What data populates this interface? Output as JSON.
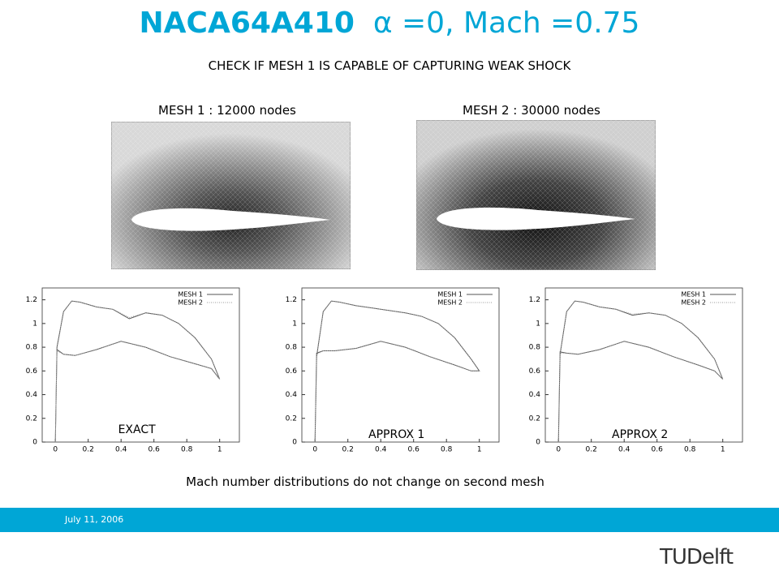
{
  "title": {
    "name": "NACA64A410",
    "condition": "α =0, Mach =0.75"
  },
  "subtitle": "CHECK IF MESH 1 IS CAPABLE OF CAPTURING WEAK SHOCK",
  "meshes": [
    {
      "label": "MESH 1 :  12000 nodes"
    },
    {
      "label": "MESH 2 :  30000 nodes"
    }
  ],
  "caption": "Mach number distributions do not change on second mesh",
  "date": "July 11, 2006",
  "logo": "TUDelft",
  "chart_data": [
    {
      "type": "line",
      "annotation": "EXACT",
      "x": [
        0,
        0.01,
        0.05,
        0.1,
        0.15,
        0.25,
        0.35,
        0.45,
        0.55,
        0.65,
        0.75,
        0.85,
        0.95,
        1,
        0.95,
        0.85,
        0.7,
        0.55,
        0.4,
        0.25,
        0.12,
        0.05,
        0.01,
        0
      ],
      "series": [
        {
          "name": "MESH 1",
          "color": "#555555",
          "style": "solid",
          "values": [
            0,
            0.8,
            1.1,
            1.19,
            1.18,
            1.14,
            1.12,
            1.04,
            1.09,
            1.07,
            1.0,
            0.88,
            0.7,
            0.53,
            0.62,
            0.66,
            0.72,
            0.8,
            0.85,
            0.78,
            0.73,
            0.74,
            0.78,
            0
          ]
        },
        {
          "name": "MESH 2",
          "color": "#999999",
          "style": "dotted",
          "values": [
            0,
            0.79,
            1.1,
            1.19,
            1.18,
            1.14,
            1.12,
            1.05,
            1.09,
            1.07,
            1.0,
            0.88,
            0.7,
            0.53,
            0.62,
            0.66,
            0.72,
            0.8,
            0.85,
            0.78,
            0.73,
            0.74,
            0.77,
            0
          ]
        }
      ],
      "xlim": [
        -0.08,
        1.12
      ],
      "ylim": [
        0,
        1.3
      ],
      "xticks": [
        0,
        0.2,
        0.4,
        0.6,
        0.8,
        1
      ],
      "yticks": [
        0,
        0.2,
        0.4,
        0.6,
        0.8,
        1,
        1.2
      ]
    },
    {
      "type": "line",
      "annotation": "APPROX 1",
      "x": [
        0,
        0.01,
        0.05,
        0.1,
        0.15,
        0.25,
        0.35,
        0.45,
        0.55,
        0.65,
        0.75,
        0.85,
        0.95,
        1,
        0.95,
        0.85,
        0.7,
        0.55,
        0.4,
        0.25,
        0.12,
        0.05,
        0.01,
        0
      ],
      "series": [
        {
          "name": "MESH 1",
          "color": "#555555",
          "style": "solid",
          "values": [
            0,
            0.72,
            1.1,
            1.19,
            1.18,
            1.15,
            1.13,
            1.11,
            1.09,
            1.06,
            1.0,
            0.88,
            0.7,
            0.6,
            0.6,
            0.65,
            0.72,
            0.8,
            0.85,
            0.79,
            0.77,
            0.77,
            0.75,
            0
          ]
        },
        {
          "name": "MESH 2",
          "color": "#999999",
          "style": "dotted",
          "values": [
            0,
            0.73,
            1.1,
            1.19,
            1.18,
            1.15,
            1.13,
            1.11,
            1.09,
            1.06,
            1.0,
            0.88,
            0.7,
            0.6,
            0.6,
            0.65,
            0.72,
            0.8,
            0.85,
            0.79,
            0.77,
            0.77,
            0.74,
            0
          ]
        }
      ],
      "xlim": [
        -0.08,
        1.12
      ],
      "ylim": [
        0,
        1.3
      ],
      "xticks": [
        0,
        0.2,
        0.4,
        0.6,
        0.8,
        1
      ],
      "yticks": [
        0,
        0.2,
        0.4,
        0.6,
        0.8,
        1,
        1.2
      ]
    },
    {
      "type": "line",
      "annotation": "APPROX 2",
      "x": [
        0,
        0.01,
        0.05,
        0.1,
        0.15,
        0.25,
        0.35,
        0.45,
        0.55,
        0.65,
        0.75,
        0.85,
        0.95,
        1,
        0.95,
        0.85,
        0.7,
        0.55,
        0.4,
        0.25,
        0.12,
        0.05,
        0.01,
        0
      ],
      "series": [
        {
          "name": "MESH 1",
          "color": "#555555",
          "style": "solid",
          "values": [
            0,
            0.74,
            1.1,
            1.19,
            1.18,
            1.14,
            1.12,
            1.07,
            1.09,
            1.07,
            1.0,
            0.88,
            0.7,
            0.53,
            0.6,
            0.65,
            0.72,
            0.8,
            0.85,
            0.78,
            0.74,
            0.75,
            0.76,
            0
          ]
        },
        {
          "name": "MESH 2",
          "color": "#999999",
          "style": "dotted",
          "values": [
            0,
            0.75,
            1.1,
            1.19,
            1.18,
            1.14,
            1.12,
            1.08,
            1.09,
            1.07,
            1.0,
            0.88,
            0.7,
            0.53,
            0.6,
            0.65,
            0.72,
            0.8,
            0.85,
            0.78,
            0.74,
            0.75,
            0.75,
            0
          ]
        }
      ],
      "xlim": [
        -0.08,
        1.12
      ],
      "ylim": [
        0,
        1.3
      ],
      "xticks": [
        0,
        0.2,
        0.4,
        0.6,
        0.8,
        1
      ],
      "yticks": [
        0,
        0.2,
        0.4,
        0.6,
        0.8,
        1,
        1.2
      ]
    }
  ]
}
